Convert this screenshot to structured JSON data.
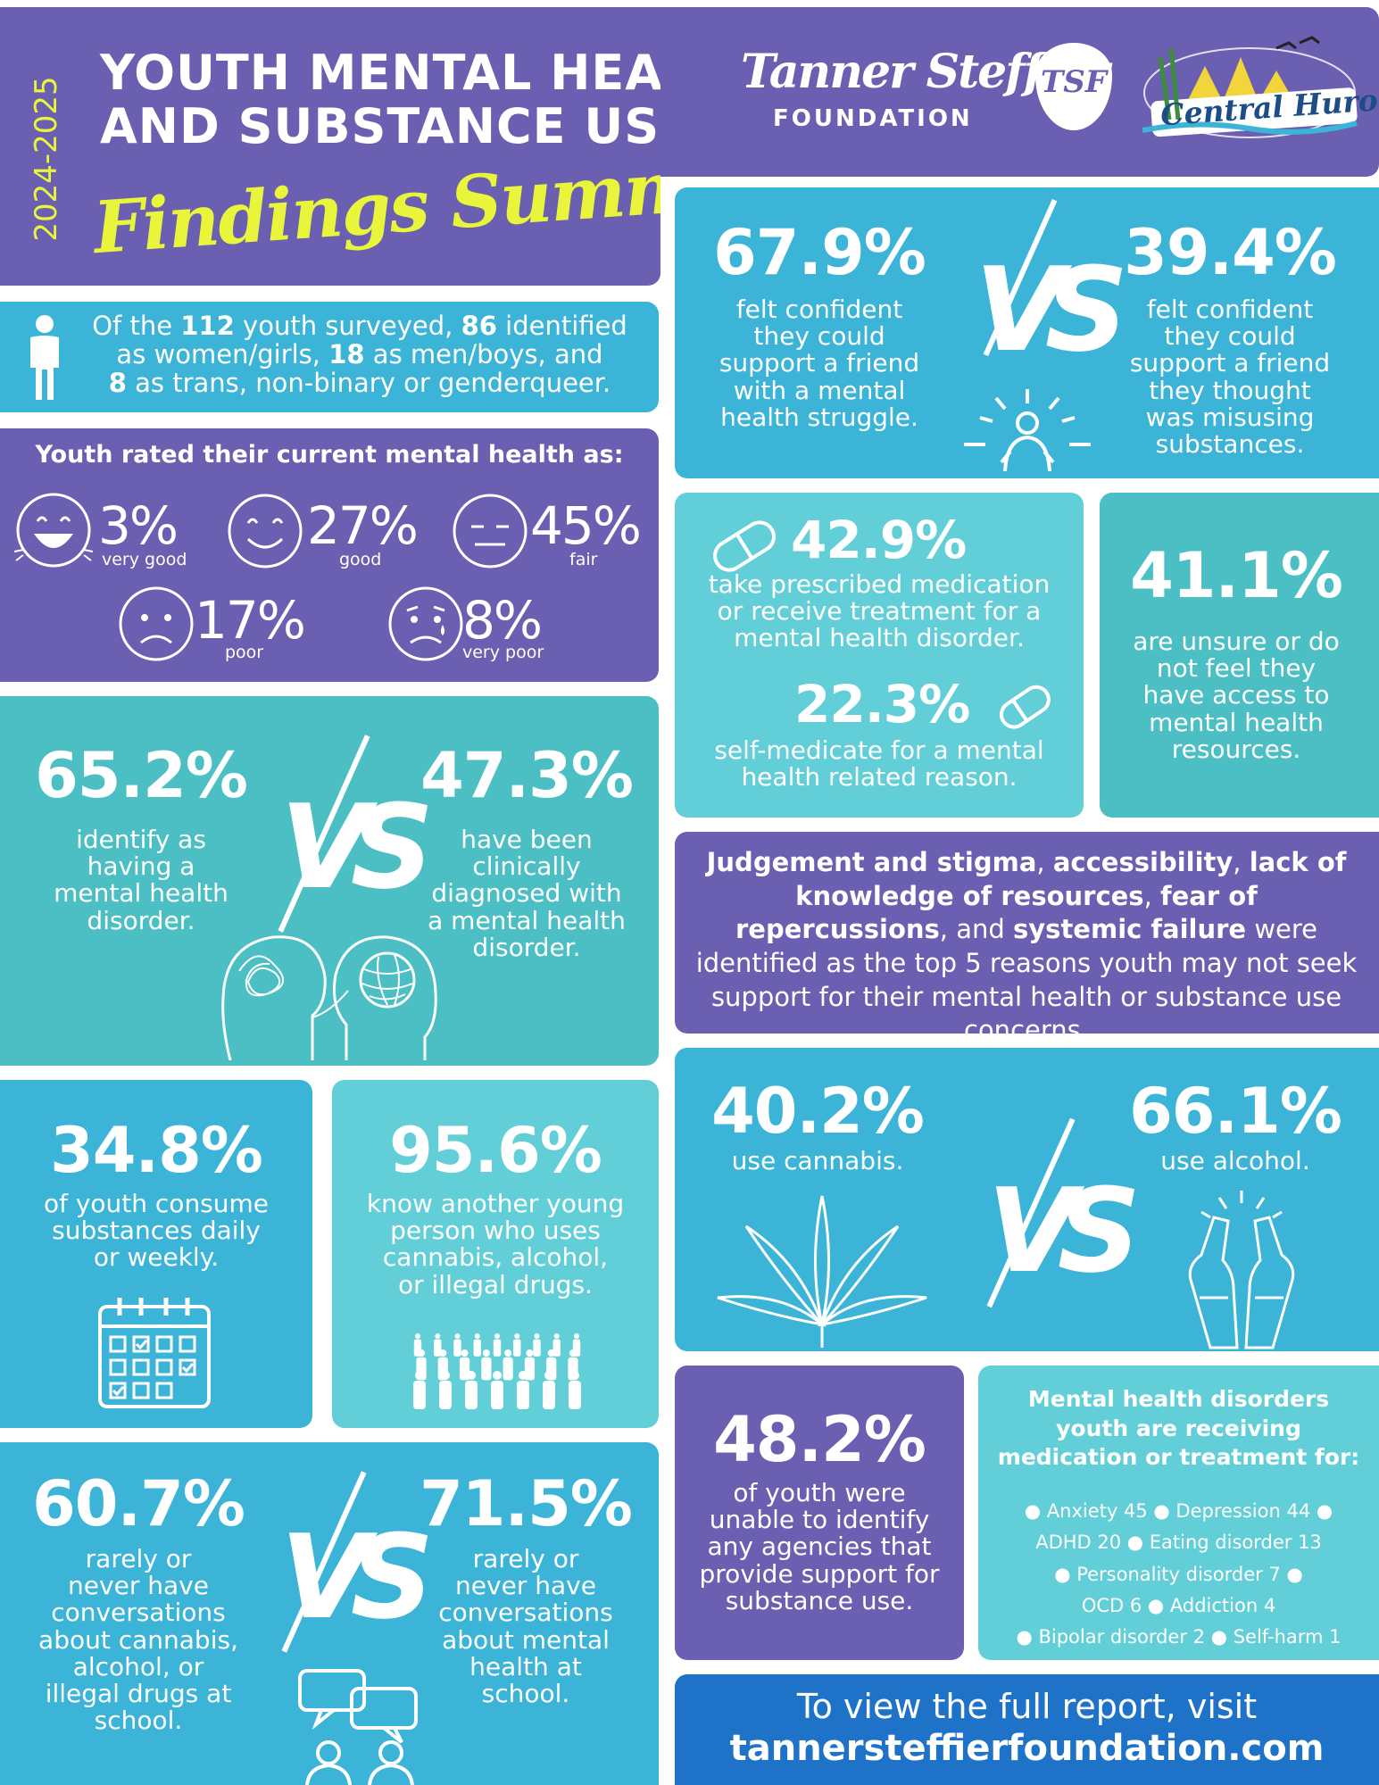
{
  "header": {
    "years": "2024-2025",
    "title_line1": "YOUTH MENTAL HEALTH",
    "title_line2": "AND SUBSTANCE USE",
    "subtitle": "Findings Summary",
    "logo1_name": "Tanner Steffler",
    "logo1_sub": "FOUNDATION",
    "logo1_badge": "TSF",
    "logo2_name": "Central Huron"
  },
  "survey": {
    "t1": "Of the ",
    "n_total": "112",
    "t2": " youth surveyed, ",
    "n_women": "86",
    "t3": " identified",
    "t4": "as women/girls, ",
    "n_men": "18",
    "t5": " as men/boys, and",
    "n_trans": "8",
    "t6": " as trans, non-binary or genderqueer."
  },
  "rating": {
    "title": "Youth rated their current mental health as:",
    "items": [
      {
        "pct": "3%",
        "label": "very good",
        "icon": "very-happy-face-icon"
      },
      {
        "pct": "27%",
        "label": "good",
        "icon": "smile-face-icon"
      },
      {
        "pct": "45%",
        "label": "fair",
        "icon": "neutral-face-icon"
      },
      {
        "pct": "17%",
        "label": "poor",
        "icon": "sad-face-icon"
      },
      {
        "pct": "8%",
        "label": "very poor",
        "icon": "worried-face-icon"
      }
    ]
  },
  "confidence": {
    "left_pct": "67.9%",
    "left_text": [
      "felt confident",
      "they could",
      "support a friend",
      "with a mental",
      "health struggle."
    ],
    "vs": "VS",
    "right_pct": "39.4%",
    "right_text": [
      "felt confident",
      "they could",
      "support a friend",
      "they thought",
      "was misusing",
      "substances."
    ]
  },
  "medication": {
    "pct1": "42.9%",
    "text1": [
      "take prescribed medication",
      "or receive treatment for a",
      "mental health disorder."
    ],
    "pct2": "22.3%",
    "text2": [
      "self-medicate for a mental",
      "health related reason."
    ]
  },
  "access": {
    "pct": "41.1%",
    "text": [
      "are unsure or do",
      "not feel they",
      "have access to",
      "mental health",
      "resources."
    ]
  },
  "disorder": {
    "left_pct": "65.2%",
    "left_text": [
      "identify as",
      "having a",
      "mental health",
      "disorder."
    ],
    "vs": "VS",
    "right_pct": "47.3%",
    "right_text": [
      "have been",
      "clinically",
      "diagnosed with",
      "a mental health",
      "disorder."
    ]
  },
  "reasons": {
    "r1": "Judgement and stigma",
    "c1": ", ",
    "r2": "accessibility",
    "c2": ", ",
    "r3": "lack of knowledge of resources",
    "c3": ", ",
    "r4": "fear of repercussions",
    "c4": ",",
    "c5": "and ",
    "r5": "systemic failure",
    "rest": " were identified as the top 5 reasons youth may not seek support for their mental health or substance use concerns."
  },
  "daily": {
    "pct": "34.8%",
    "text": [
      "of youth consume",
      "substances daily",
      "or weekly."
    ]
  },
  "know": {
    "pct": "95.6%",
    "text": [
      "know another young",
      "person who uses",
      "cannabis, alcohol,",
      "or illegal drugs."
    ]
  },
  "cannabis": {
    "left_pct": "40.2%",
    "left_text": "use cannabis.",
    "vs": "VS",
    "right_pct": "66.1%",
    "right_text": "use alcohol."
  },
  "conversations": {
    "left_pct": "60.7%",
    "left_text": [
      "rarely or",
      "never have",
      "conversations",
      "about cannabis,",
      "alcohol, or",
      "illegal drugs at",
      "school."
    ],
    "vs": "VS",
    "right_pct": "71.5%",
    "right_text": [
      "rarely or",
      "never have",
      "conversations",
      "about mental",
      "health at",
      "school."
    ]
  },
  "agencies": {
    "pct": "48.2%",
    "text": [
      "of youth were",
      "unable to identify",
      "any agencies that",
      "provide support for",
      "substance use."
    ]
  },
  "disorders": {
    "title": [
      "Mental health disorders",
      "youth are receiving",
      "medication or treatment for:"
    ],
    "lines": [
      "● Anxiety 45  ● Depression 44 ●",
      "ADHD 20  ● Eating disorder 13",
      "● Personality disorder 7 ●",
      "OCD 6  ●  Addiction 4",
      "● Bipolar disorder 2  ● Self-harm 1"
    ]
  },
  "footer": {
    "line1": "To view the full report, visit",
    "url": "tannersteffierfoundation.com"
  },
  "colors": {
    "purple": "#6a5fb0",
    "teal": "#4bbfc3",
    "sky": "#3bb4d8",
    "aqua": "#62cfd8",
    "blue": "#1e73c8",
    "yellow": "#e9f53a"
  }
}
